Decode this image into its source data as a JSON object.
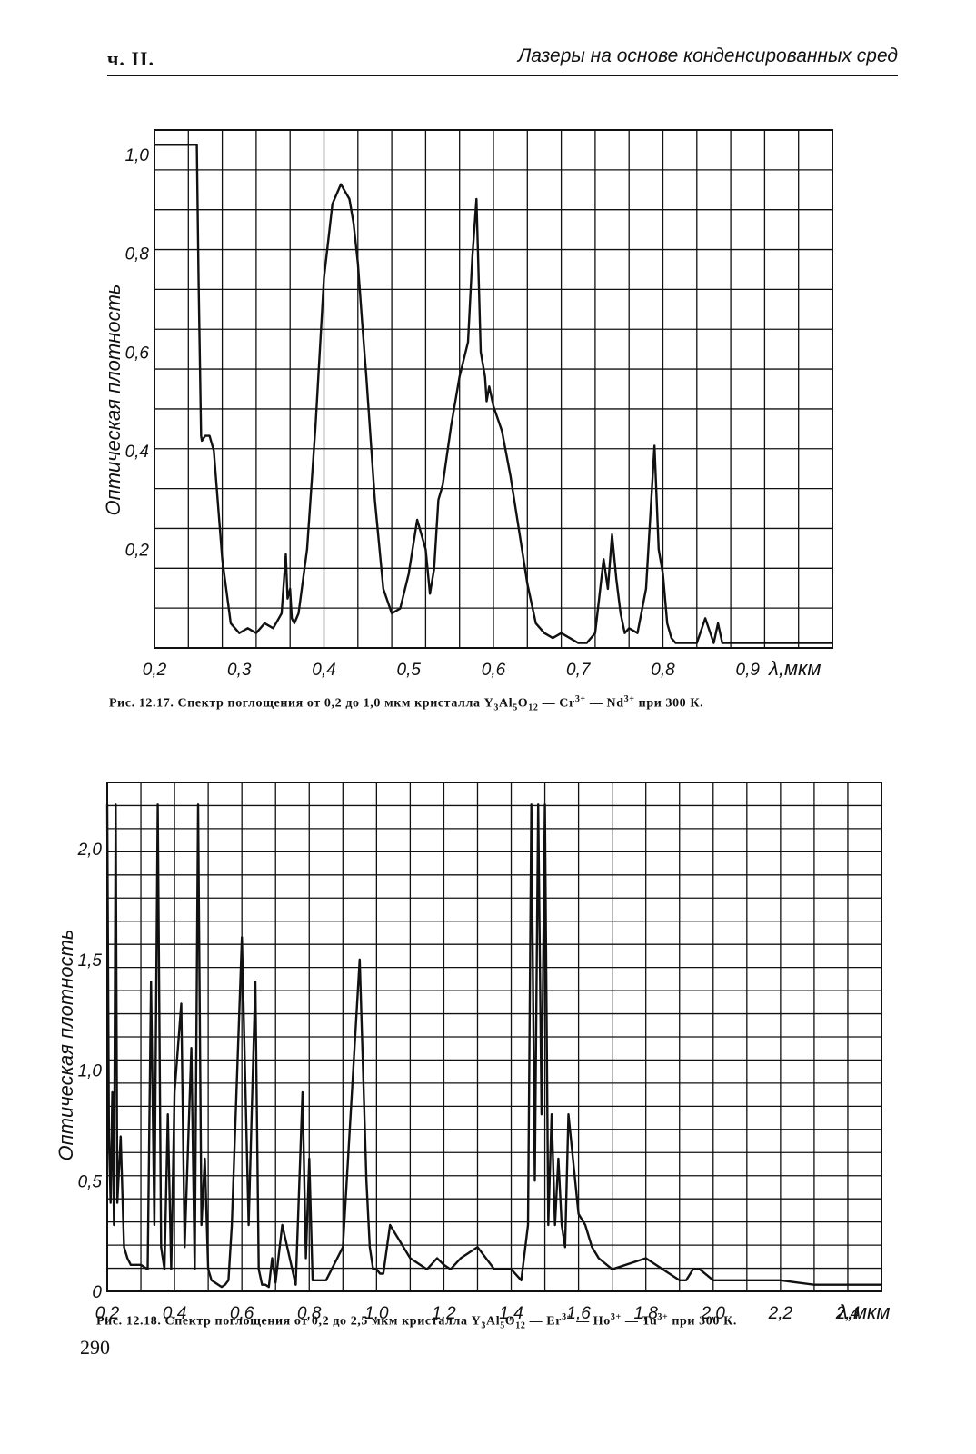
{
  "header": {
    "left": "ч. II.",
    "right": "Лазеры на основе конденсированных сред"
  },
  "page_number": "290",
  "chart_data": [
    {
      "type": "line",
      "figure": "Рис. 12.17.",
      "caption": {
        "prefix": "Рис. 12.17. Спектр поглощения от 0,2 до 1,0 мкм кристалла Y",
        "s1": "3",
        "t1": "Al",
        "s2": "5",
        "t2": "O",
        "s3": "12",
        "t3": " — Cr",
        "p1": "3+",
        "t4": " — Nd",
        "p2": "3+",
        "t5": " при 300 К."
      },
      "ylabel": "Оптическая плотность",
      "xlabel": "λ,мкм",
      "xlim": [
        0.2,
        1.0
      ],
      "ylim": [
        0,
        1.05
      ],
      "grid": true,
      "x_tick_labels": [
        "0,2",
        "0,3",
        "0,4",
        "0,5",
        "0,6",
        "0,7",
        "0,8",
        "0,9"
      ],
      "x_ticks": [
        0.2,
        0.3,
        0.4,
        0.5,
        0.6,
        0.7,
        0.8,
        0.9
      ],
      "y_tick_labels": [
        "0,2",
        "0,4",
        "0,6",
        "0,8",
        "1,0"
      ],
      "y_ticks": [
        0.2,
        0.4,
        0.6,
        0.8,
        1.0
      ],
      "series": [
        {
          "x": [
            0.2,
            0.25,
            0.252,
            0.255,
            0.256,
            0.26,
            0.265,
            0.27,
            0.28,
            0.29,
            0.3,
            0.31,
            0.32,
            0.33,
            0.34,
            0.35,
            0.355,
            0.357,
            0.36,
            0.362,
            0.365,
            0.37,
            0.38,
            0.39,
            0.4,
            0.41,
            0.42,
            0.43,
            0.435,
            0.44,
            0.445,
            0.45,
            0.46,
            0.47,
            0.48,
            0.49,
            0.5,
            0.51,
            0.52,
            0.525,
            0.53,
            0.535,
            0.54,
            0.55,
            0.56,
            0.57,
            0.575,
            0.58,
            0.585,
            0.59,
            0.592,
            0.595,
            0.6,
            0.61,
            0.62,
            0.63,
            0.64,
            0.65,
            0.66,
            0.67,
            0.68,
            0.69,
            0.7,
            0.71,
            0.72,
            0.73,
            0.735,
            0.74,
            0.745,
            0.75,
            0.755,
            0.76,
            0.77,
            0.78,
            0.79,
            0.795,
            0.8,
            0.805,
            0.81,
            0.815,
            0.82,
            0.83,
            0.84,
            0.85,
            0.86,
            0.865,
            0.87,
            0.875,
            0.88,
            0.89,
            0.9,
            0.95,
            1.0
          ],
          "y": [
            1.02,
            1.02,
            0.75,
            0.43,
            0.42,
            0.43,
            0.43,
            0.4,
            0.18,
            0.05,
            0.03,
            0.04,
            0.03,
            0.05,
            0.04,
            0.07,
            0.19,
            0.1,
            0.12,
            0.06,
            0.05,
            0.07,
            0.2,
            0.45,
            0.75,
            0.9,
            0.94,
            0.91,
            0.86,
            0.78,
            0.66,
            0.55,
            0.3,
            0.12,
            0.07,
            0.08,
            0.15,
            0.26,
            0.2,
            0.11,
            0.16,
            0.3,
            0.33,
            0.45,
            0.55,
            0.62,
            0.79,
            0.91,
            0.6,
            0.55,
            0.5,
            0.53,
            0.49,
            0.44,
            0.35,
            0.24,
            0.13,
            0.05,
            0.03,
            0.02,
            0.03,
            0.02,
            0.01,
            0.01,
            0.03,
            0.18,
            0.12,
            0.23,
            0.14,
            0.07,
            0.03,
            0.04,
            0.03,
            0.12,
            0.41,
            0.2,
            0.15,
            0.05,
            0.02,
            0.01,
            0.01,
            0.01,
            0.01,
            0.06,
            0.01,
            0.05,
            0.01,
            0.01,
            0.01,
            0.01,
            0.01,
            0.01,
            0.01
          ]
        }
      ]
    },
    {
      "type": "line",
      "figure": "Рис. 12.18.",
      "caption": {
        "prefix": "Рис. 12.18. Спектр поглощения от 0,2 до 2,5 мкм кристалла Y",
        "s1": "3",
        "t1": "Al",
        "s2": "5",
        "t2": "O",
        "s3": "12",
        "t3": " — Er",
        "p1": "3+",
        "t4": " — Ho",
        "p2": "3+",
        "t5": " — Tu",
        "p3": "3+",
        "t6": " при 300 К."
      },
      "ylabel": "Оптическая плотность",
      "xlabel": "λ,мкм",
      "xlim": [
        0.2,
        2.5
      ],
      "ylim": [
        0,
        2.3
      ],
      "grid": true,
      "x_tick_labels": [
        "0,2",
        "0,4",
        "0,6",
        "0,8",
        "1,0",
        "1,2",
        "1,4",
        "1,6",
        "1,8",
        "2,0",
        "2,2",
        "2,4"
      ],
      "x_ticks": [
        0.2,
        0.4,
        0.6,
        0.8,
        1.0,
        1.2,
        1.4,
        1.6,
        1.8,
        2.0,
        2.2,
        2.4
      ],
      "y_tick_labels": [
        "0",
        "0,5",
        "1,0",
        "1,5",
        "2,0"
      ],
      "y_ticks": [
        0,
        0.5,
        1.0,
        1.5,
        2.0
      ],
      "series": [
        {
          "x": [
            0.2,
            0.205,
            0.21,
            0.215,
            0.22,
            0.225,
            0.23,
            0.24,
            0.25,
            0.26,
            0.27,
            0.3,
            0.32,
            0.33,
            0.34,
            0.35,
            0.36,
            0.37,
            0.38,
            0.39,
            0.4,
            0.42,
            0.43,
            0.45,
            0.46,
            0.47,
            0.48,
            0.49,
            0.5,
            0.51,
            0.52,
            0.53,
            0.54,
            0.55,
            0.56,
            0.57,
            0.6,
            0.62,
            0.64,
            0.65,
            0.66,
            0.67,
            0.68,
            0.69,
            0.7,
            0.72,
            0.76,
            0.78,
            0.79,
            0.8,
            0.81,
            0.83,
            0.85,
            0.9,
            0.95,
            0.97,
            0.98,
            0.99,
            1.0,
            1.01,
            1.02,
            1.04,
            1.1,
            1.15,
            1.18,
            1.2,
            1.22,
            1.25,
            1.3,
            1.35,
            1.4,
            1.43,
            1.45,
            1.46,
            1.47,
            1.48,
            1.49,
            1.5,
            1.51,
            1.52,
            1.53,
            1.54,
            1.55,
            1.56,
            1.57,
            1.6,
            1.62,
            1.64,
            1.66,
            1.7,
            1.8,
            1.9,
            1.92,
            1.94,
            1.96,
            2.0,
            2.05,
            2.1,
            2.15,
            2.2,
            2.25,
            2.3,
            2.4,
            2.5
          ],
          "y": [
            2.2,
            0.7,
            0.4,
            0.9,
            0.3,
            2.2,
            0.4,
            0.7,
            0.2,
            0.15,
            0.12,
            0.12,
            0.1,
            1.4,
            0.3,
            2.2,
            0.2,
            0.1,
            0.8,
            0.1,
            0.9,
            1.3,
            0.2,
            1.1,
            0.1,
            2.2,
            0.3,
            0.6,
            0.1,
            0.05,
            0.04,
            0.03,
            0.02,
            0.03,
            0.05,
            0.3,
            1.6,
            0.3,
            1.4,
            0.1,
            0.03,
            0.03,
            0.02,
            0.15,
            0.04,
            0.3,
            0.03,
            0.9,
            0.15,
            0.6,
            0.05,
            0.05,
            0.05,
            0.2,
            1.5,
            0.5,
            0.2,
            0.1,
            0.1,
            0.08,
            0.08,
            0.3,
            0.15,
            0.1,
            0.15,
            0.12,
            0.1,
            0.15,
            0.2,
            0.1,
            0.1,
            0.05,
            0.3,
            2.2,
            0.5,
            2.2,
            0.8,
            2.2,
            0.3,
            0.8,
            0.3,
            0.6,
            0.3,
            0.2,
            0.8,
            0.35,
            0.3,
            0.2,
            0.15,
            0.1,
            0.15,
            0.05,
            0.05,
            0.1,
            0.1,
            0.05,
            0.05,
            0.05,
            0.05,
            0.05,
            0.04,
            0.03,
            0.03,
            0.03
          ]
        }
      ]
    }
  ]
}
